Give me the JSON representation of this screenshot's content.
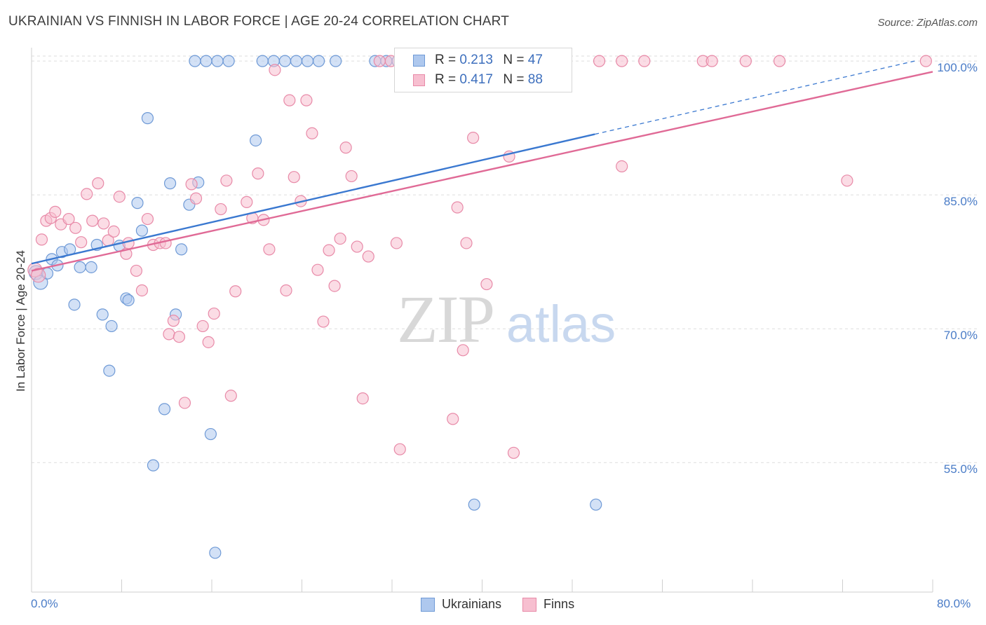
{
  "title": "UKRAINIAN VS FINNISH IN LABOR FORCE | AGE 20-24 CORRELATION CHART",
  "source": "Source: ZipAtlas.com",
  "watermark": {
    "zip": "ZIP",
    "atlas": "atlas"
  },
  "legend": {
    "r_label": "R =",
    "n_label": "N =",
    "items": [
      {
        "name": "Ukrainians",
        "r": "0.213",
        "n": "47",
        "fill": "#aec8ee",
        "stroke": "#6f9ad6"
      },
      {
        "name": "Finns",
        "r": "0.417",
        "n": "88",
        "fill": "#f7bfd0",
        "stroke": "#e88aa8"
      }
    ]
  },
  "chart_data": {
    "type": "scatter",
    "xlabel": "",
    "ylabel": "In Labor Force | Age 20-24",
    "xlim": [
      0,
      80
    ],
    "ylim": [
      40.5,
      101.5
    ],
    "x_tick_labels": [
      "0.0%",
      "80.0%"
    ],
    "y_tick_labels": [
      "100.0%",
      "85.0%",
      "70.0%",
      "55.0%"
    ],
    "y_ticks": [
      100,
      85,
      70,
      55
    ],
    "grid": true,
    "series": [
      {
        "name": "Ukrainians",
        "color": "#6f9ad6",
        "fill": "#aec8ee",
        "points": [
          [
            0.4,
            76.3
          ],
          [
            0.8,
            75.2
          ],
          [
            1.4,
            76.2
          ],
          [
            1.8,
            77.8
          ],
          [
            2.3,
            77.1
          ],
          [
            2.7,
            78.6
          ],
          [
            3.4,
            78.9
          ],
          [
            3.8,
            72.7
          ],
          [
            4.3,
            76.9
          ],
          [
            5.3,
            76.9
          ],
          [
            5.8,
            79.4
          ],
          [
            6.3,
            71.6
          ],
          [
            6.9,
            65.3
          ],
          [
            7.1,
            70.3
          ],
          [
            7.8,
            79.3
          ],
          [
            8.4,
            73.4
          ],
          [
            8.6,
            73.2
          ],
          [
            9.4,
            84.1
          ],
          [
            9.8,
            81.0
          ],
          [
            10.3,
            93.6
          ],
          [
            10.8,
            54.7
          ],
          [
            11.8,
            61.0
          ],
          [
            12.3,
            86.3
          ],
          [
            12.8,
            71.6
          ],
          [
            13.3,
            78.9
          ],
          [
            14.0,
            83.9
          ],
          [
            14.8,
            86.4
          ],
          [
            15.9,
            58.2
          ],
          [
            16.3,
            44.9
          ],
          [
            14.5,
            100.0
          ],
          [
            15.5,
            100.0
          ],
          [
            16.5,
            100.0
          ],
          [
            17.5,
            100.0
          ],
          [
            20.5,
            100.0
          ],
          [
            21.5,
            100.0
          ],
          [
            22.5,
            100.0
          ],
          [
            23.5,
            100.0
          ],
          [
            24.5,
            100.0
          ],
          [
            25.5,
            100.0
          ],
          [
            27.0,
            100.0
          ],
          [
            30.5,
            100.0
          ],
          [
            31.5,
            100.0
          ],
          [
            19.9,
            91.1
          ],
          [
            39.3,
            50.3
          ],
          [
            50.1,
            50.3
          ],
          [
            32.5,
            100.0
          ],
          [
            33.5,
            100.0
          ]
        ]
      },
      {
        "name": "Finns",
        "color": "#e88aa8",
        "fill": "#f7bfd0",
        "points": [
          [
            0.3,
            76.6
          ],
          [
            0.6,
            76.0
          ],
          [
            0.9,
            80.0
          ],
          [
            1.3,
            82.1
          ],
          [
            1.7,
            82.4
          ],
          [
            2.1,
            83.1
          ],
          [
            2.6,
            81.7
          ],
          [
            3.3,
            82.3
          ],
          [
            3.9,
            81.3
          ],
          [
            4.4,
            79.7
          ],
          [
            4.9,
            85.1
          ],
          [
            5.4,
            82.1
          ],
          [
            5.9,
            86.3
          ],
          [
            6.4,
            81.8
          ],
          [
            6.8,
            79.9
          ],
          [
            7.3,
            80.9
          ],
          [
            7.8,
            84.8
          ],
          [
            8.4,
            78.4
          ],
          [
            8.6,
            79.6
          ],
          [
            9.3,
            76.5
          ],
          [
            9.8,
            74.3
          ],
          [
            10.3,
            82.3
          ],
          [
            10.8,
            79.4
          ],
          [
            11.4,
            79.6
          ],
          [
            11.9,
            79.6
          ],
          [
            12.2,
            69.4
          ],
          [
            12.6,
            70.9
          ],
          [
            13.1,
            69.1
          ],
          [
            13.6,
            61.7
          ],
          [
            14.2,
            86.2
          ],
          [
            14.6,
            84.6
          ],
          [
            15.2,
            70.3
          ],
          [
            15.7,
            68.5
          ],
          [
            16.2,
            71.7
          ],
          [
            16.8,
            83.4
          ],
          [
            17.3,
            86.6
          ],
          [
            17.7,
            62.5
          ],
          [
            18.1,
            74.2
          ],
          [
            19.1,
            84.2
          ],
          [
            19.6,
            82.4
          ],
          [
            20.1,
            87.4
          ],
          [
            20.6,
            82.2
          ],
          [
            21.1,
            78.9
          ],
          [
            21.6,
            99.0
          ],
          [
            22.6,
            74.3
          ],
          [
            22.9,
            95.6
          ],
          [
            23.3,
            87.0
          ],
          [
            23.9,
            84.3
          ],
          [
            24.4,
            95.6
          ],
          [
            24.9,
            91.9
          ],
          [
            25.4,
            76.6
          ],
          [
            25.9,
            70.8
          ],
          [
            26.4,
            78.8
          ],
          [
            26.9,
            74.8
          ],
          [
            27.4,
            80.1
          ],
          [
            27.9,
            90.3
          ],
          [
            28.4,
            87.1
          ],
          [
            28.9,
            79.2
          ],
          [
            29.4,
            62.2
          ],
          [
            29.9,
            78.1
          ],
          [
            30.9,
            100.0
          ],
          [
            31.9,
            100.0
          ],
          [
            32.4,
            79.6
          ],
          [
            32.7,
            56.5
          ],
          [
            33.4,
            100.0
          ],
          [
            37.4,
            59.9
          ],
          [
            37.8,
            83.6
          ],
          [
            38.3,
            67.6
          ],
          [
            38.6,
            79.6
          ],
          [
            39.2,
            91.4
          ],
          [
            40.4,
            75.0
          ],
          [
            41.5,
            100.0
          ],
          [
            42.4,
            89.3
          ],
          [
            42.8,
            56.1
          ],
          [
            43.4,
            100.0
          ],
          [
            44.4,
            100.0
          ],
          [
            47.4,
            100.0
          ],
          [
            50.4,
            100.0
          ],
          [
            52.4,
            100.0
          ],
          [
            54.4,
            100.0
          ],
          [
            59.6,
            100.0
          ],
          [
            60.4,
            100.0
          ],
          [
            63.4,
            100.0
          ],
          [
            66.4,
            100.0
          ],
          [
            72.4,
            86.6
          ],
          [
            79.4,
            100.0
          ],
          [
            52.4,
            88.2
          ],
          [
            34.4,
            100.0
          ]
        ]
      }
    ],
    "trendlines": [
      {
        "series": "Ukrainians",
        "x": [
          0,
          50.0
        ],
        "y": [
          77.3,
          91.8
        ],
        "dashed_to": [
          78.4,
          100.0
        ],
        "color": "#3a78d0"
      },
      {
        "series": "Finns",
        "x": [
          0,
          80
        ],
        "y": [
          76.5,
          98.8
        ],
        "color": "#e06a96"
      }
    ]
  }
}
